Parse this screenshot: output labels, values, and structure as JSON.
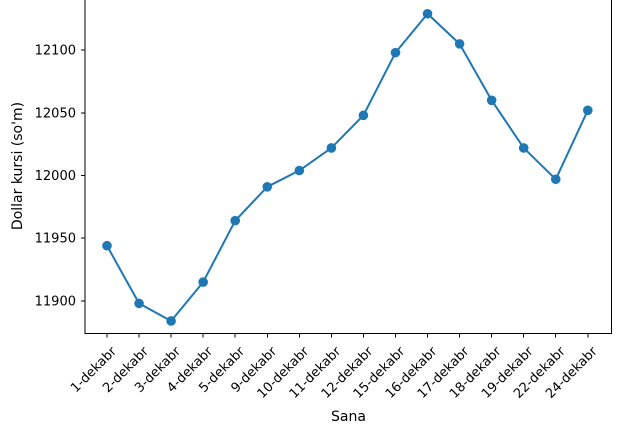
{
  "chart": {
    "title": "",
    "xlabel": "Sana",
    "ylabel": "Dollar kursi (so'm)"
  },
  "chart_data": {
    "type": "line",
    "title": "",
    "xlabel": "Sana",
    "ylabel": "Dollar kursi (so'm)",
    "categories": [
      "1-dekabr",
      "2-dekabr",
      "3-dekabr",
      "4-dekabr",
      "5-dekabr",
      "9-dekabr",
      "10-dekabr",
      "11-dekabr",
      "12-dekabr",
      "15-dekabr",
      "16-dekabr",
      "17-dekabr",
      "18-dekabr",
      "19-dekabr",
      "22-dekabr",
      "24-dekabr"
    ],
    "values": [
      11944,
      11898,
      11884,
      11915,
      11964,
      11991,
      12004,
      12022,
      12048,
      12098,
      12129,
      12105,
      12060,
      12022,
      11997,
      12052
    ],
    "yticks": [
      11900,
      11950,
      12000,
      12050,
      12100
    ],
    "ylim": [
      11874,
      12140
    ],
    "grid": false,
    "legend": null,
    "line_color": "#1f77b4",
    "marker": "o",
    "axis_color": "#000000",
    "background_color": "#ffffff"
  }
}
